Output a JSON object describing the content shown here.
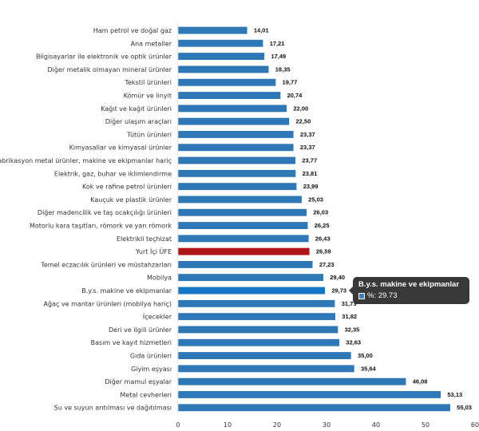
{
  "chart_data": {
    "type": "bar",
    "orientation": "horizontal",
    "title": "",
    "xlabel": "",
    "ylabel": "",
    "xlim": [
      0,
      60
    ],
    "xticks": [
      0,
      10,
      20,
      30,
      40,
      50,
      60
    ],
    "xtick_labels": [
      "0",
      "10",
      "20",
      "30",
      "40",
      "50",
      "60"
    ],
    "grid": false,
    "legend": "none",
    "colors": {
      "default": "#2f78b7",
      "highlight": "#b0151b",
      "hover": "#1476c6"
    },
    "categories": [
      "Ham petrol ve doğal gaz",
      "Ana metaller",
      "Bilgisayarlar ile elektronik ve optik ürünler",
      "Diğer metalik olmayan mineral ürünler",
      "Tekstil ürünleri",
      "Kömür ve linyit",
      "Kağıt ve kağıt ürünleri",
      "Diğer ulaşım araçları",
      "Tütün ürünleri",
      "Kimyasallar ve kimyasal ürünler",
      "Fabrikasyon metal ürünler, makine ve ekipmanlar hariç",
      "Elektrik, gaz, buhar ve iklimlendirme",
      "Kok ve rafine petrol ürünleri",
      "Kauçuk ve plastik ürünler",
      "Diğer madencilik ve taş ocakçılığı ürünleri",
      "Motorlu kara taşıtları, römork ve yarı römork",
      "Elektrikli teçhizat",
      "Yurt İçi ÜFE",
      "Temel eczacılık ürünleri ve müstahzarları",
      "Mobilya",
      "B.y.s. makine ve ekipmanlar",
      "Ağaç ve mantar ürünleri (mobilya hariç)",
      "İçecekler",
      "Deri ve ilgili ürünler",
      "Basım ve kayıt hizmetleri",
      "Gıda ürünleri",
      "Giyim eşyası",
      "Diğer mamul eşyalar",
      "Metal cevherleri",
      "Su ve suyun arıtılması ve dağıtılması"
    ],
    "values": [
      14.01,
      17.21,
      17.49,
      18.35,
      19.77,
      20.74,
      22.0,
      22.5,
      23.37,
      23.37,
      23.77,
      23.81,
      23.99,
      25.03,
      26.03,
      26.25,
      26.43,
      26.59,
      27.23,
      29.4,
      29.73,
      31.73,
      31.82,
      32.35,
      32.63,
      35.0,
      35.64,
      46.08,
      53.13,
      55.03
    ],
    "value_labels": [
      "14,01",
      "17,21",
      "17,49",
      "18,35",
      "19,77",
      "20,74",
      "22,00",
      "22,50",
      "23,37",
      "23,37",
      "23,77",
      "23,81",
      "23,99",
      "25,03",
      "26,03",
      "26,25",
      "26,43",
      "26,59",
      "27,23",
      "29,40",
      "29,73",
      "31,73",
      "31,82",
      "32,35",
      "32,63",
      "35,00",
      "35,64",
      "46,08",
      "53,13",
      "55,03"
    ],
    "highlighted_index": 17,
    "hovered_index": 20
  },
  "tooltip": {
    "title": "B.y.s. makine ve ekipmanlar",
    "series_label": "%: 29.73"
  }
}
